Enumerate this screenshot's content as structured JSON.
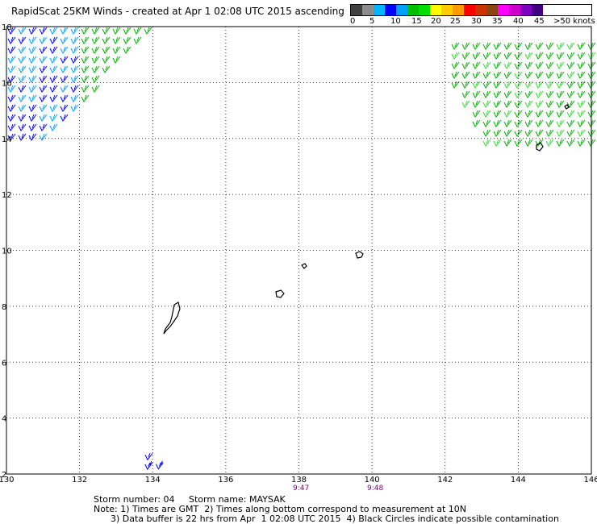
{
  "title": "RapidScat 25KM Winds - created at Apr  1 02:08 UTC 2015 ascending",
  "legend": {
    "colors": [
      "#404040",
      "#8c8c8c",
      "#00b4ff",
      "#0000ff",
      "#00a0ff",
      "#00c000",
      "#00e000",
      "#ffff00",
      "#ffcc00",
      "#ff9900",
      "#ff0000",
      "#cc3300",
      "#8b4513",
      "#ff00ff",
      "#cc00cc",
      "#8000c0",
      "#400080"
    ],
    "labels": [
      "0",
      "5",
      "10",
      "15",
      "20",
      "25",
      "30",
      "35",
      "40",
      "45",
      ">50 knots"
    ]
  },
  "axes": {
    "lon_ticks": [
      "130",
      "132",
      "134",
      "136",
      "138",
      "140",
      "142",
      "144",
      "146"
    ],
    "lat_ticks": [
      "2",
      "4",
      "6",
      "8",
      "10",
      "12",
      "14",
      "16",
      "18"
    ],
    "lon_range": [
      130,
      146
    ],
    "lat_range": [
      2,
      18
    ]
  },
  "times": [
    "9:47",
    "9:48"
  ],
  "storm": {
    "number_label": "Storm number: 04",
    "name_label": "Storm name: MAYSAK"
  },
  "notes": [
    "Note: 1) Times are GMT  2) Times along bottom correspond to measurement at 10N",
    "      3) Data buffer is 22 hrs from Apr  1 02:08 UTC 2015  4) Black Circles indicate possible contamination"
  ]
}
